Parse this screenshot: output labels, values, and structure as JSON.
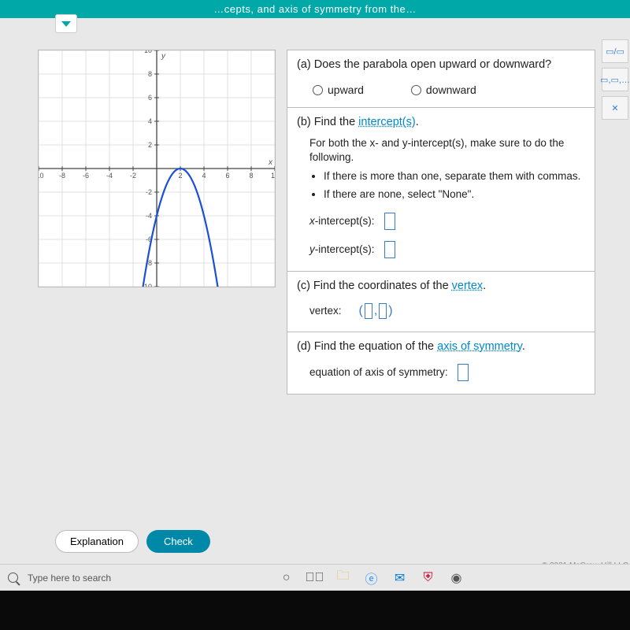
{
  "banner": {
    "text_fragment": "…cepts, and axis of symmetry from the…"
  },
  "graph": {
    "xlim": [
      -10,
      10
    ],
    "ylim": [
      -10,
      10
    ],
    "tick_step": 2,
    "grid_color": "#d8d8d8",
    "axis_color": "#444444",
    "axis_label_color": "#555555",
    "axis_label_fontsize": 9,
    "x_axis_label": "x",
    "y_axis_label": "y",
    "background_color": "#ffffff",
    "parabola": {
      "type": "parabola",
      "a": -1,
      "vertex": [
        2,
        0
      ],
      "stroke": "#1a4fd6",
      "stroke_width": 2.2,
      "x_range": [
        -1.2,
        5.3
      ]
    }
  },
  "questions": {
    "a": {
      "prompt": "(a) Does the parabola open upward or downward?",
      "options": {
        "upward": "upward",
        "downward": "downward"
      }
    },
    "b": {
      "prompt_prefix": "(b) Find the ",
      "prompt_link": "intercept(s)",
      "prompt_suffix": ".",
      "sub_intro": "For both the x- and y-intercept(s), make sure to do the following.",
      "bullet1": "If there is more than one, separate them with commas.",
      "bullet2": "If there are none, select \"None\".",
      "x_label": "x-intercept(s):",
      "y_label": "y-intercept(s):"
    },
    "c": {
      "prompt_prefix": "(c) Find the coordinates of the ",
      "prompt_link": "vertex",
      "prompt_suffix": ".",
      "label": "vertex:"
    },
    "d": {
      "prompt_prefix": "(d) Find the equation of the ",
      "prompt_link": "axis of symmetry",
      "prompt_suffix": ".",
      "label": "equation of axis of symmetry:"
    }
  },
  "side_tools": {
    "frac": "▭/▭",
    "list": "▭,▭,…",
    "close": "✕"
  },
  "buttons": {
    "explanation": "Explanation",
    "check": "Check"
  },
  "copyright": "© 2021 McGraw Hill LLC",
  "taskbar": {
    "search_placeholder": "Type here to search"
  }
}
